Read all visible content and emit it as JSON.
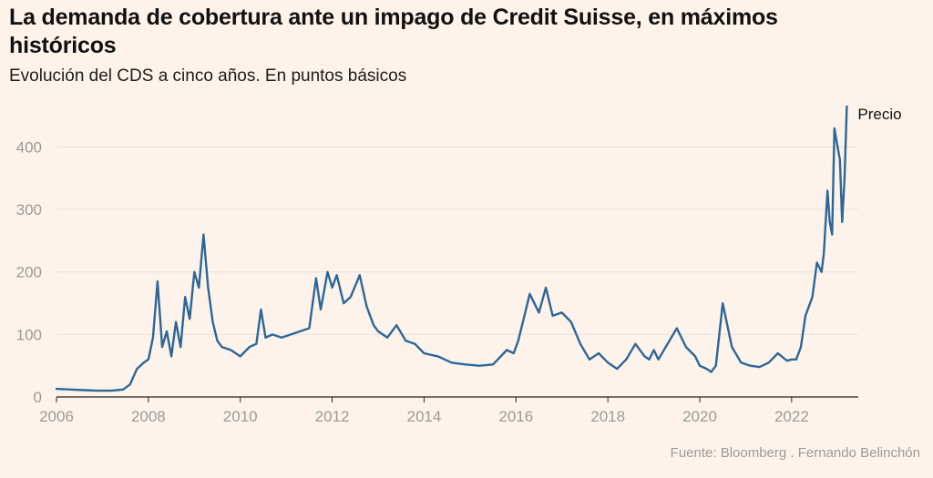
{
  "title": "La demanda de cobertura ante un impago de Credit Suisse, en máximos históricos",
  "subtitle": "Evolución del CDS a cinco años. En puntos básicos",
  "source": "Fuente: Bloomberg . Fernando Belinchón",
  "colors": {
    "line": "#2d6797",
    "grid": "#e8e2dc",
    "axis": "#222222",
    "background": "#fdf3ea"
  },
  "chart_data": {
    "type": "line",
    "xlabel": "",
    "ylabel": "",
    "xlim": [
      2006,
      2023.45
    ],
    "ylim": [
      0,
      475
    ],
    "x_ticks": [
      2006,
      2008,
      2010,
      2012,
      2014,
      2016,
      2018,
      2020,
      2022
    ],
    "y_ticks": [
      0,
      100,
      200,
      300,
      400
    ],
    "grid": true,
    "series": [
      {
        "name": "Precio",
        "x": [
          2006.0,
          2006.3,
          2006.6,
          2006.9,
          2007.2,
          2007.45,
          2007.6,
          2007.75,
          2007.9,
          2008.0,
          2008.1,
          2008.2,
          2008.3,
          2008.4,
          2008.5,
          2008.6,
          2008.7,
          2008.8,
          2008.9,
          2009.0,
          2009.1,
          2009.2,
          2009.3,
          2009.4,
          2009.5,
          2009.6,
          2009.8,
          2010.0,
          2010.2,
          2010.35,
          2010.45,
          2010.55,
          2010.7,
          2010.9,
          2011.1,
          2011.3,
          2011.5,
          2011.65,
          2011.75,
          2011.9,
          2012.0,
          2012.1,
          2012.25,
          2012.4,
          2012.6,
          2012.75,
          2012.9,
          2013.0,
          2013.2,
          2013.4,
          2013.6,
          2013.8,
          2014.0,
          2014.3,
          2014.6,
          2014.9,
          2015.2,
          2015.5,
          2015.8,
          2015.95,
          2016.05,
          2016.15,
          2016.3,
          2016.5,
          2016.65,
          2016.8,
          2017.0,
          2017.2,
          2017.4,
          2017.6,
          2017.8,
          2018.0,
          2018.2,
          2018.4,
          2018.6,
          2018.8,
          2018.9,
          2019.0,
          2019.1,
          2019.3,
          2019.5,
          2019.7,
          2019.9,
          2020.0,
          2020.15,
          2020.25,
          2020.35,
          2020.5,
          2020.7,
          2020.9,
          2021.1,
          2021.3,
          2021.5,
          2021.7,
          2021.9,
          2022.0,
          2022.1,
          2022.2,
          2022.3,
          2022.45,
          2022.55,
          2022.65,
          2022.7,
          2022.78,
          2022.83,
          2022.88,
          2022.93,
          2023.0,
          2023.05,
          2023.1,
          2023.15,
          2023.2
        ],
        "values": [
          13,
          12,
          11,
          10,
          10,
          12,
          20,
          45,
          55,
          60,
          95,
          185,
          80,
          105,
          65,
          120,
          80,
          160,
          125,
          200,
          175,
          260,
          175,
          120,
          90,
          80,
          75,
          65,
          80,
          85,
          140,
          95,
          100,
          95,
          100,
          105,
          110,
          190,
          140,
          200,
          175,
          195,
          150,
          160,
          195,
          145,
          115,
          105,
          95,
          115,
          90,
          85,
          70,
          65,
          55,
          52,
          50,
          52,
          75,
          70,
          90,
          120,
          165,
          135,
          175,
          130,
          135,
          120,
          85,
          60,
          70,
          55,
          45,
          60,
          85,
          65,
          60,
          75,
          60,
          85,
          110,
          80,
          65,
          50,
          45,
          40,
          50,
          150,
          80,
          55,
          50,
          48,
          55,
          70,
          58,
          60,
          60,
          80,
          130,
          160,
          215,
          200,
          230,
          330,
          280,
          260,
          430,
          400,
          380,
          280,
          350,
          465
        ]
      }
    ]
  }
}
